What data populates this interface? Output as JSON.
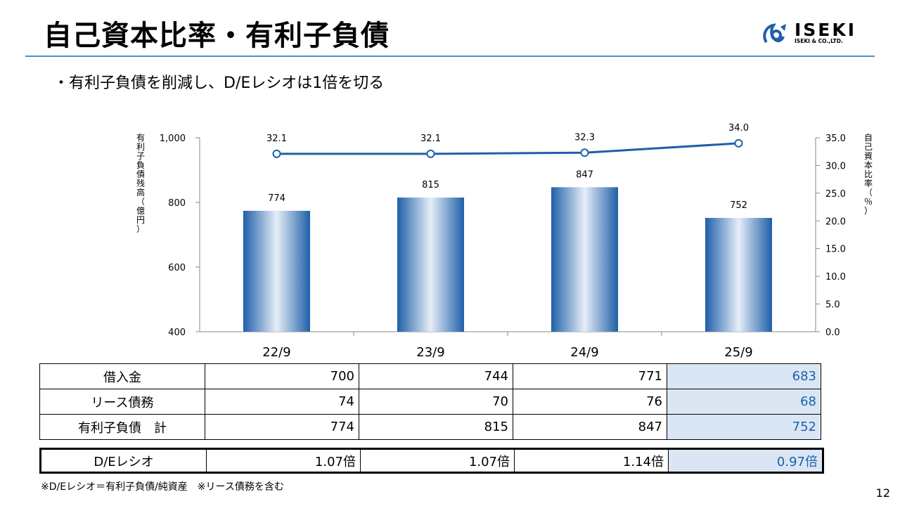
{
  "header": {
    "title": "自己資本比率・有利子負債",
    "logo_name": "ISEKI",
    "logo_sub": "ISEKI & CO.,LTD."
  },
  "bullet": {
    "marker": "・",
    "text": "有利子負債を削減し、D/Eレシオは1倍を切る"
  },
  "chart_data": {
    "type": "bar",
    "categories": [
      "22/9",
      "23/9",
      "24/9",
      "25/9"
    ],
    "series": [
      {
        "values": [
          774,
          815,
          847,
          752
        ],
        "type": "bar",
        "axis": "left"
      },
      {
        "values": [
          32.1,
          32.1,
          32.3,
          34.0
        ],
        "type": "line",
        "axis": "right"
      }
    ],
    "ylabel": "有利子負債残高（億円）",
    "ylabel_right": "自己資本比率（％）",
    "ylim": [
      400,
      1000
    ],
    "ylim_right": [
      0,
      35
    ],
    "yticks": [
      "400",
      "600",
      "800",
      "1,000"
    ],
    "yticks_right": [
      "0.0",
      "5.0",
      "10.0",
      "15.0",
      "20.0",
      "25.0",
      "30.0",
      "35.0"
    ],
    "bar_labels": [
      "774",
      "815",
      "847",
      "752"
    ],
    "line_labels": [
      "32.1",
      "32.1",
      "32.3",
      "34.0"
    ],
    "grid": false,
    "colors": {
      "bar_edge": "#1f5fa8",
      "bar_center": "#e6eef8",
      "line": "#1f5fa8",
      "marker_fill": "#ffffff"
    }
  },
  "table": {
    "rows": [
      {
        "label": "借入金",
        "values": [
          "700",
          "744",
          "771",
          "683"
        ]
      },
      {
        "label": "リース債務",
        "values": [
          "74",
          "70",
          "76",
          "68"
        ]
      },
      {
        "label": "有利子負債　計",
        "values": [
          "774",
          "815",
          "847",
          "752"
        ]
      }
    ],
    "de_row": {
      "label": "D/Eレシオ",
      "values": [
        "1.07倍",
        "1.07倍",
        "1.14倍",
        "0.97倍"
      ]
    }
  },
  "footnote": "※D/Eレシオ＝有利子負債/純資産　※リース債務を含む",
  "page_number": "12",
  "colors": {
    "accent": "#1f5fa8",
    "rule": "#4f8cc9",
    "highlight": "#dae6f4"
  }
}
